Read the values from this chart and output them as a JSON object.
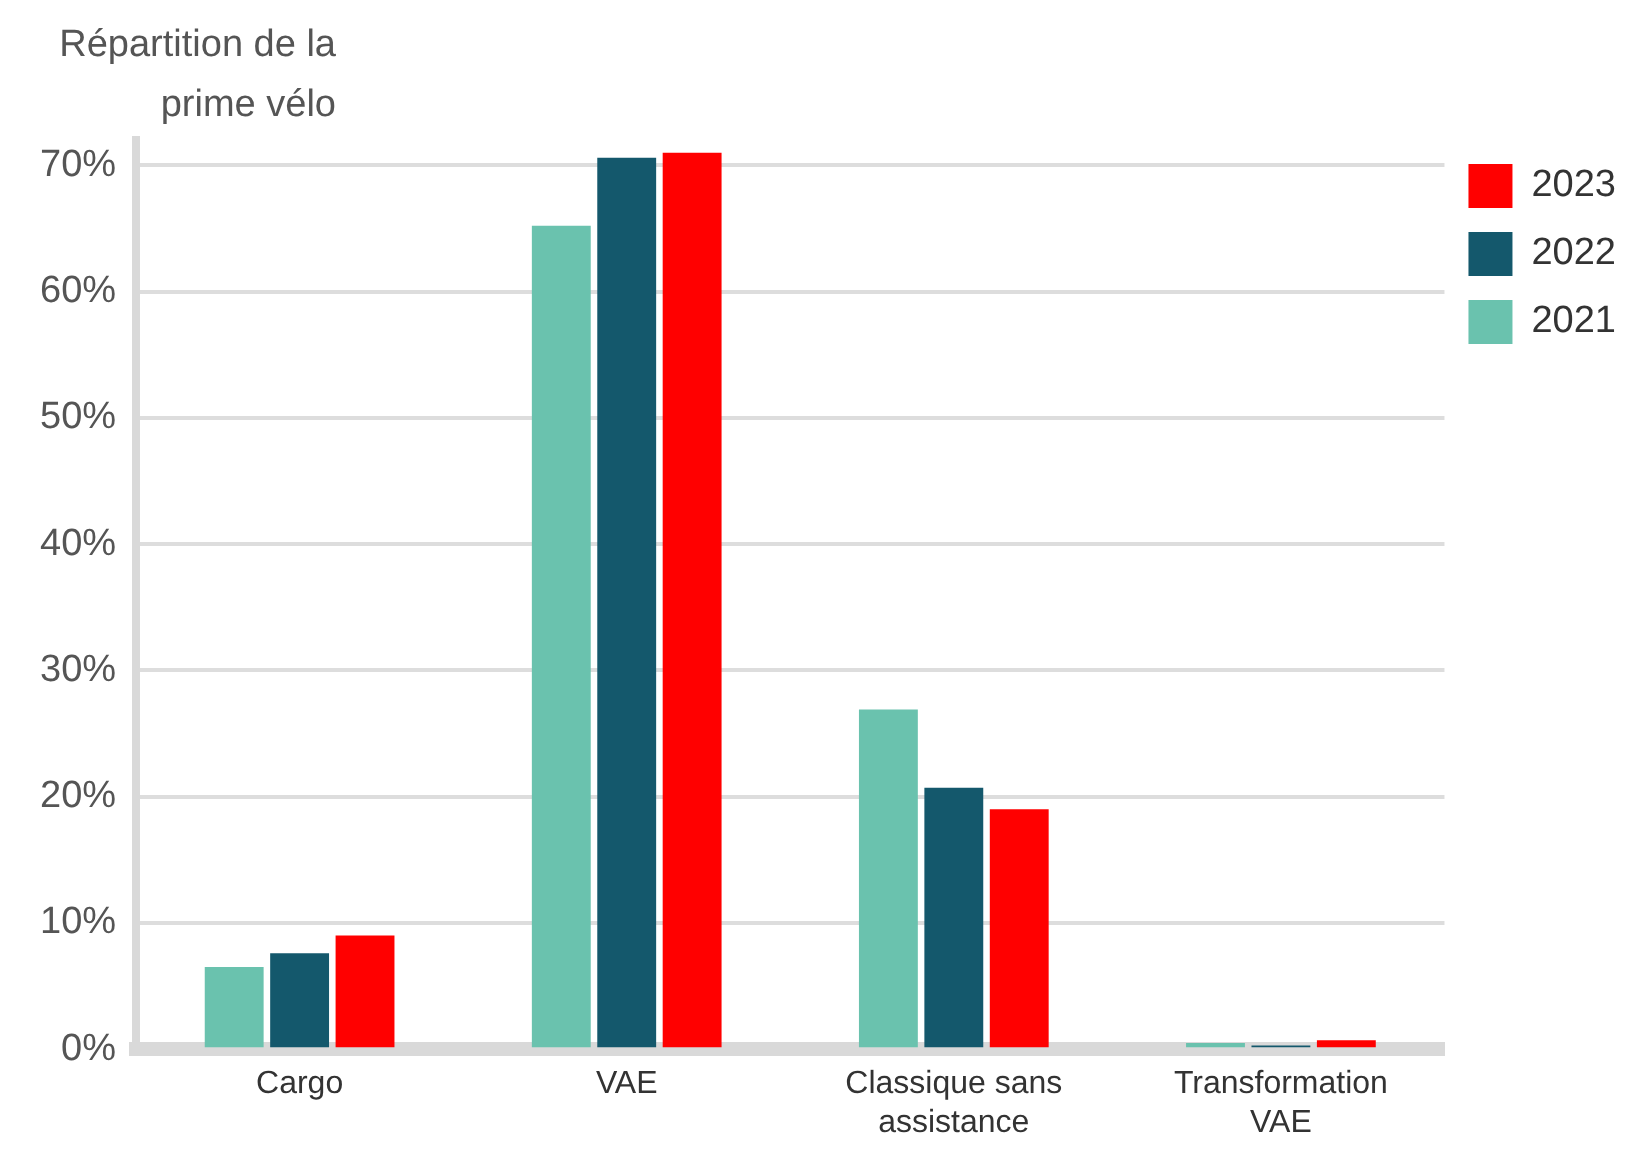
{
  "chart_data": {
    "type": "bar",
    "ylabel": "Répartition de la prime vélo",
    "categories": [
      "Cargo",
      "VAE",
      "Classique sans assistance",
      "Transformation VAE"
    ],
    "series": [
      {
        "name": "2021",
        "color": "#6ac2ae",
        "values": [
          6.5,
          65.2,
          26.9,
          0.5
        ]
      },
      {
        "name": "2022",
        "color": "#14586c",
        "values": [
          7.6,
          70.6,
          20.7,
          0.3
        ]
      },
      {
        "name": "2023",
        "color": "#ff0000",
        "values": [
          9.0,
          71.0,
          19.0,
          0.7
        ]
      }
    ],
    "ylim": [
      0,
      72
    ],
    "yticks": [
      {
        "value": 0,
        "label": "0%"
      },
      {
        "value": 10,
        "label": "10%"
      },
      {
        "value": 20,
        "label": "20%"
      },
      {
        "value": 30,
        "label": "30%"
      },
      {
        "value": 40,
        "label": "40%"
      },
      {
        "value": 50,
        "label": "50%"
      },
      {
        "value": 60,
        "label": "60%"
      },
      {
        "value": 70,
        "label": "70%"
      }
    ],
    "grid": "y",
    "legend": "top right"
  }
}
